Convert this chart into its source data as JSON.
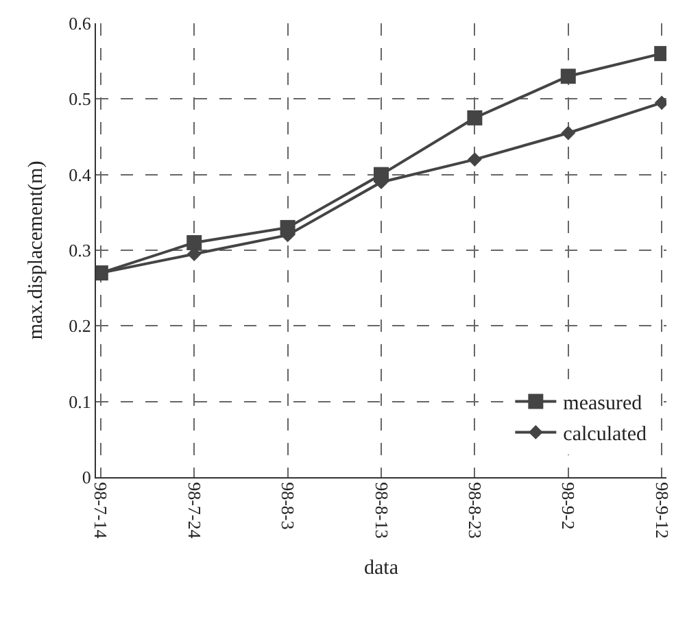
{
  "chart_data": {
    "type": "line",
    "xlabel": "data",
    "ylabel": "max.displacement(m)",
    "categories": [
      "98-7-14",
      "98-7-24",
      "98-8-3",
      "98-8-13",
      "98-8-23",
      "98-9-2",
      "98-9-12"
    ],
    "series": [
      {
        "name": "measured",
        "color": "#444444",
        "marker": "square",
        "values": [
          0.27,
          0.31,
          0.33,
          0.4,
          0.475,
          0.53,
          0.56
        ]
      },
      {
        "name": "calculated",
        "color": "#444444",
        "marker": "diamond",
        "values": [
          0.27,
          0.295,
          0.32,
          0.39,
          0.42,
          0.455,
          0.495
        ]
      }
    ],
    "ylim": [
      0,
      0.6
    ],
    "yticks": [
      0,
      0.1,
      0.2,
      0.3,
      0.4,
      0.5,
      0.6
    ],
    "grid": true,
    "legend": "bottom right",
    "line_style": "solid"
  }
}
